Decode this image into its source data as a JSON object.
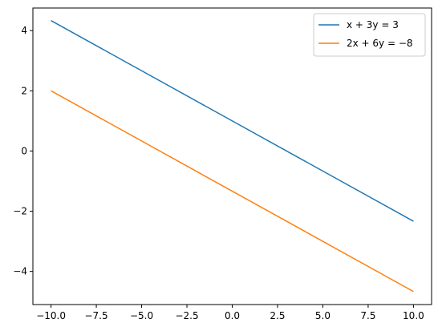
{
  "chart_data": {
    "type": "line",
    "title": "",
    "xlabel": "",
    "ylabel": "",
    "xlim": [
      -11,
      11
    ],
    "ylim": [
      -5.1,
      4.75
    ],
    "x_ticks": [
      -10.0,
      -7.5,
      -5.0,
      -2.5,
      0.0,
      2.5,
      5.0,
      7.5,
      10.0
    ],
    "x_tick_labels": [
      "−10.0",
      "−7.5",
      "−5.0",
      "−2.5",
      "0.0",
      "2.5",
      "5.0",
      "7.5",
      "10.0"
    ],
    "y_ticks": [
      -4,
      -2,
      0,
      2,
      4
    ],
    "y_tick_labels": [
      "−4",
      "−2",
      "0",
      "2",
      "4"
    ],
    "grid": false,
    "legend_position": "top-right",
    "series": [
      {
        "name": "x + 3y = 3",
        "color": "#1f77b4",
        "x": [
          -10,
          10
        ],
        "y": [
          4.333,
          -2.333
        ]
      },
      {
        "name": "2x + 6y = −8",
        "color": "#ff7f0e",
        "x": [
          -10,
          10
        ],
        "y": [
          2.0,
          -4.667
        ]
      }
    ]
  }
}
